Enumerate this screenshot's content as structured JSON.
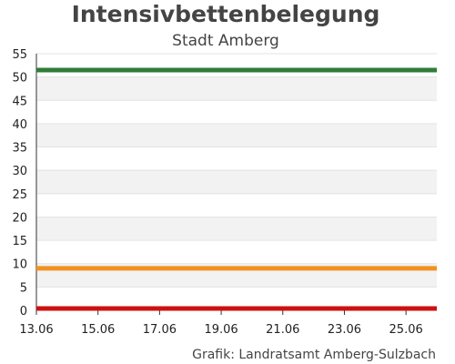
{
  "chart_data": {
    "type": "line",
    "title": "Intensivbettenbelegung",
    "subtitle": "Stadt Amberg",
    "credit": "Grafik: Landratsamt Amberg-Sulzbach",
    "xlabel": "",
    "ylabel": "",
    "x_start": "13.06",
    "x_ticks": [
      "13.06",
      "15.06",
      "17.06",
      "19.06",
      "21.06",
      "23.06",
      "25.06"
    ],
    "xlim": [
      "13.06",
      "26.06"
    ],
    "ylim": [
      0,
      55
    ],
    "y_ticks": [
      0,
      5,
      10,
      15,
      20,
      25,
      30,
      35,
      40,
      45,
      50,
      55
    ],
    "grid": true,
    "band_colors": [
      "#f2f2f2",
      "#ffffff"
    ],
    "series": [
      {
        "values": [
          51.5,
          51.5
        ],
        "color": "#2e7d3a"
      },
      {
        "values": [
          9,
          9
        ],
        "color": "#f0921f"
      },
      {
        "values": [
          0.4,
          0.4
        ],
        "color": "#cc1111"
      }
    ]
  }
}
